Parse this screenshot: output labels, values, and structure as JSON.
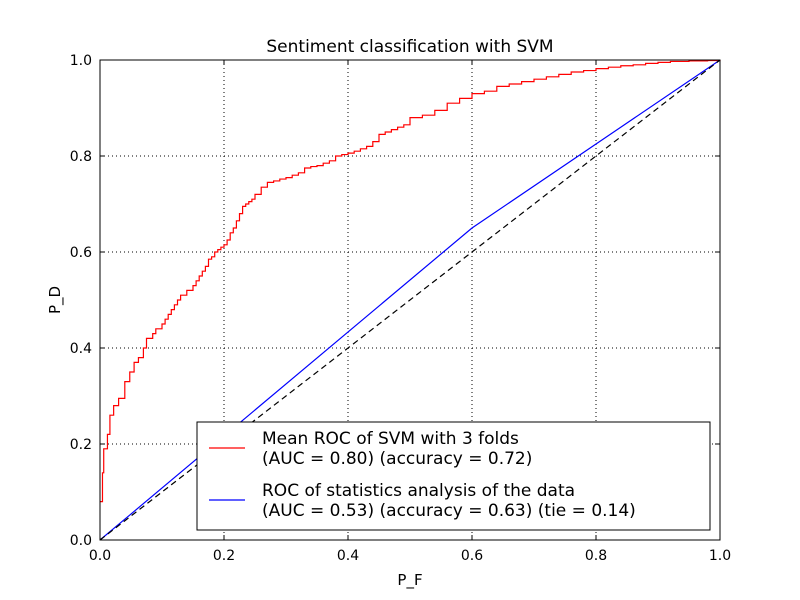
{
  "chart_data": {
    "type": "line",
    "title": "Sentiment classification with SVM",
    "xlabel": "P_F",
    "ylabel": "P_D",
    "xlim": [
      0,
      1
    ],
    "ylim": [
      0,
      1
    ],
    "xticks": [
      "0.0",
      "0.2",
      "0.4",
      "0.6",
      "0.8",
      "1.0"
    ],
    "yticks": [
      "0.0",
      "0.2",
      "0.4",
      "0.6",
      "0.8",
      "1.0"
    ],
    "grid": true,
    "legend_position": "lower-right",
    "series": [
      {
        "name": "Mean ROC of SVM with 3 folds\n(AUC = 0.80) (accuracy = 0.72)",
        "color": "#ff0000",
        "style": "step",
        "points": [
          [
            0.0,
            0.08
          ],
          [
            0.004,
            0.09
          ],
          [
            0.004,
            0.14
          ],
          [
            0.006,
            0.14
          ],
          [
            0.006,
            0.19
          ],
          [
            0.012,
            0.19
          ],
          [
            0.012,
            0.22
          ],
          [
            0.016,
            0.22
          ],
          [
            0.016,
            0.26
          ],
          [
            0.022,
            0.26
          ],
          [
            0.022,
            0.28
          ],
          [
            0.03,
            0.28
          ],
          [
            0.03,
            0.295
          ],
          [
            0.04,
            0.295
          ],
          [
            0.04,
            0.33
          ],
          [
            0.048,
            0.33
          ],
          [
            0.048,
            0.35
          ],
          [
            0.055,
            0.35
          ],
          [
            0.055,
            0.37
          ],
          [
            0.062,
            0.37
          ],
          [
            0.062,
            0.38
          ],
          [
            0.07,
            0.38
          ],
          [
            0.07,
            0.4
          ],
          [
            0.075,
            0.4
          ],
          [
            0.075,
            0.42
          ],
          [
            0.085,
            0.43
          ],
          [
            0.09,
            0.44
          ],
          [
            0.1,
            0.45
          ],
          [
            0.105,
            0.46
          ],
          [
            0.11,
            0.47
          ],
          [
            0.115,
            0.48
          ],
          [
            0.12,
            0.49
          ],
          [
            0.125,
            0.5
          ],
          [
            0.13,
            0.51
          ],
          [
            0.14,
            0.52
          ],
          [
            0.15,
            0.53
          ],
          [
            0.155,
            0.54
          ],
          [
            0.16,
            0.55
          ],
          [
            0.165,
            0.56
          ],
          [
            0.17,
            0.57
          ],
          [
            0.175,
            0.585
          ],
          [
            0.18,
            0.59
          ],
          [
            0.185,
            0.6
          ],
          [
            0.19,
            0.605
          ],
          [
            0.195,
            0.61
          ],
          [
            0.2,
            0.615
          ],
          [
            0.205,
            0.625
          ],
          [
            0.21,
            0.64
          ],
          [
            0.215,
            0.65
          ],
          [
            0.22,
            0.665
          ],
          [
            0.225,
            0.68
          ],
          [
            0.23,
            0.695
          ],
          [
            0.235,
            0.7
          ],
          [
            0.24,
            0.705
          ],
          [
            0.245,
            0.71
          ],
          [
            0.25,
            0.72
          ],
          [
            0.26,
            0.735
          ],
          [
            0.27,
            0.745
          ],
          [
            0.28,
            0.748
          ],
          [
            0.29,
            0.752
          ],
          [
            0.3,
            0.755
          ],
          [
            0.31,
            0.76
          ],
          [
            0.32,
            0.765
          ],
          [
            0.33,
            0.775
          ],
          [
            0.34,
            0.778
          ],
          [
            0.35,
            0.78
          ],
          [
            0.36,
            0.785
          ],
          [
            0.37,
            0.79
          ],
          [
            0.38,
            0.8
          ],
          [
            0.39,
            0.803
          ],
          [
            0.4,
            0.806
          ],
          [
            0.41,
            0.81
          ],
          [
            0.42,
            0.815
          ],
          [
            0.43,
            0.82
          ],
          [
            0.44,
            0.83
          ],
          [
            0.45,
            0.845
          ],
          [
            0.46,
            0.85
          ],
          [
            0.47,
            0.855
          ],
          [
            0.48,
            0.86
          ],
          [
            0.49,
            0.865
          ],
          [
            0.5,
            0.88
          ],
          [
            0.52,
            0.885
          ],
          [
            0.54,
            0.895
          ],
          [
            0.56,
            0.91
          ],
          [
            0.58,
            0.92
          ],
          [
            0.6,
            0.93
          ],
          [
            0.62,
            0.935
          ],
          [
            0.64,
            0.945
          ],
          [
            0.66,
            0.95
          ],
          [
            0.68,
            0.955
          ],
          [
            0.7,
            0.96
          ],
          [
            0.72,
            0.965
          ],
          [
            0.74,
            0.97
          ],
          [
            0.76,
            0.975
          ],
          [
            0.78,
            0.978
          ],
          [
            0.8,
            0.982
          ],
          [
            0.82,
            0.985
          ],
          [
            0.84,
            0.988
          ],
          [
            0.86,
            0.99
          ],
          [
            0.88,
            0.993
          ],
          [
            0.9,
            0.995
          ],
          [
            0.92,
            0.997
          ],
          [
            0.95,
            0.998
          ],
          [
            0.98,
            0.999
          ],
          [
            1.0,
            1.0
          ]
        ]
      },
      {
        "name": "ROC of statistics analysis of the data\n(AUC = 0.53) (accuracy = 0.63) (tie = 0.14)",
        "color": "#0000ff",
        "style": "line",
        "points": [
          [
            0.0,
            0.0
          ],
          [
            0.6,
            0.65
          ],
          [
            1.0,
            1.0
          ]
        ]
      },
      {
        "name": "",
        "color": "#000000",
        "style": "dashed",
        "points": [
          [
            0.0,
            0.0
          ],
          [
            1.0,
            1.0
          ]
        ]
      }
    ]
  }
}
